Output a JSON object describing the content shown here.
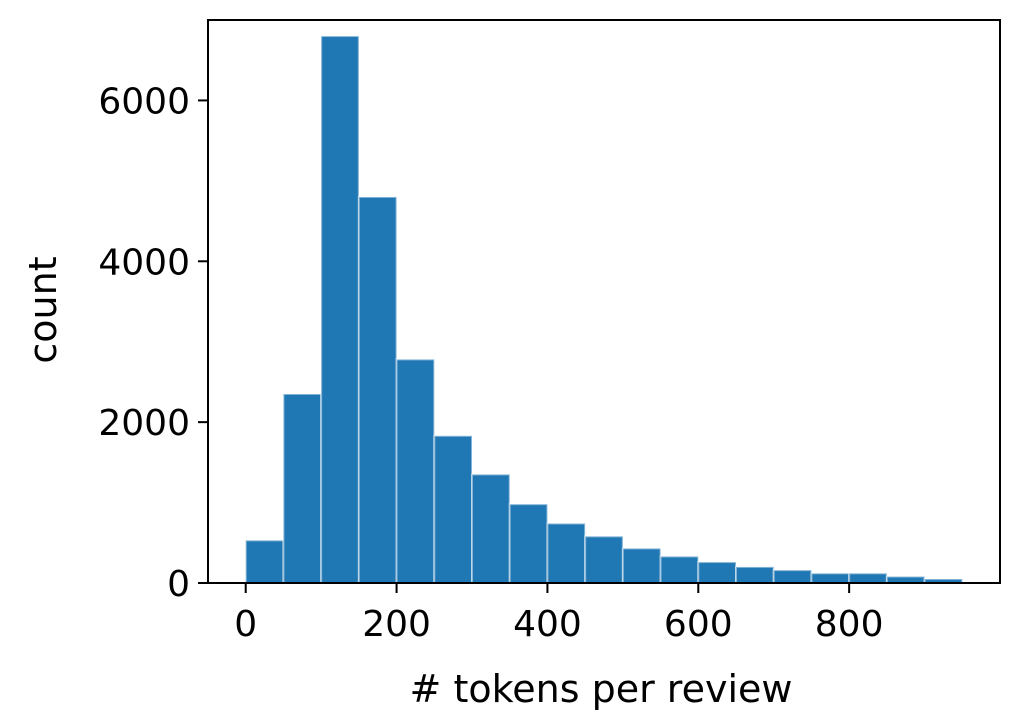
{
  "chart_data": {
    "type": "bar",
    "xlabel": "# tokens per review",
    "ylabel": "count",
    "xlim": [
      -50,
      1000
    ],
    "ylim": [
      0,
      7000
    ],
    "xticks": [
      0,
      200,
      400,
      600,
      800
    ],
    "yticks": [
      0,
      2000,
      4000,
      6000
    ],
    "grid": false,
    "bar_color": "#1f77b4",
    "bins": [
      {
        "x0": 0,
        "x1": 50,
        "count": 530
      },
      {
        "x0": 50,
        "x1": 100,
        "count": 2350
      },
      {
        "x0": 100,
        "x1": 150,
        "count": 6800
      },
      {
        "x0": 150,
        "x1": 200,
        "count": 4800
      },
      {
        "x0": 200,
        "x1": 250,
        "count": 2780
      },
      {
        "x0": 250,
        "x1": 300,
        "count": 1830
      },
      {
        "x0": 300,
        "x1": 350,
        "count": 1350
      },
      {
        "x0": 350,
        "x1": 400,
        "count": 980
      },
      {
        "x0": 400,
        "x1": 450,
        "count": 740
      },
      {
        "x0": 450,
        "x1": 500,
        "count": 580
      },
      {
        "x0": 500,
        "x1": 550,
        "count": 430
      },
      {
        "x0": 550,
        "x1": 600,
        "count": 330
      },
      {
        "x0": 600,
        "x1": 650,
        "count": 260
      },
      {
        "x0": 650,
        "x1": 700,
        "count": 200
      },
      {
        "x0": 700,
        "x1": 750,
        "count": 160
      },
      {
        "x0": 750,
        "x1": 800,
        "count": 120
      },
      {
        "x0": 800,
        "x1": 850,
        "count": 120
      },
      {
        "x0": 850,
        "x1": 900,
        "count": 80
      },
      {
        "x0": 900,
        "x1": 950,
        "count": 50
      }
    ]
  }
}
